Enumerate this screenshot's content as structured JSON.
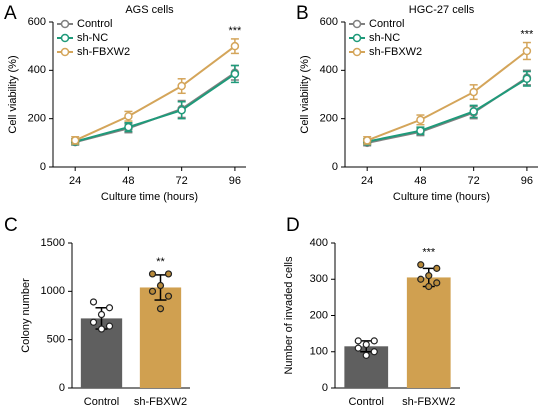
{
  "chart_data": [
    {
      "type": "line",
      "panel_label": "A",
      "title": "AGS cells",
      "xlabel": "Culture time (hours)",
      "ylabel": "Cell viability (%)",
      "x": [
        24,
        48,
        72,
        96
      ],
      "xlim": [
        14,
        101
      ],
      "xticks": [
        24,
        48,
        72,
        96
      ],
      "ylim": [
        0,
        600
      ],
      "yticks": [
        0,
        200,
        400,
        600
      ],
      "series": [
        {
          "name": "Control",
          "color": "#808080",
          "values": [
            103,
            160,
            240,
            390
          ],
          "errors": [
            12,
            18,
            35,
            30
          ]
        },
        {
          "name": "sh-NC",
          "color": "#1f9a7a",
          "values": [
            105,
            165,
            235,
            385
          ],
          "errors": [
            12,
            18,
            35,
            35
          ]
        },
        {
          "name": "sh-FBXW2",
          "color": "#d4a55a",
          "values": [
            110,
            210,
            335,
            500
          ],
          "errors": [
            15,
            20,
            30,
            30
          ]
        }
      ],
      "annotation": "***"
    },
    {
      "type": "line",
      "panel_label": "B",
      "title": "HGC-27 cells",
      "xlabel": "Culture time (hours)",
      "ylabel": "Cell viability (%)",
      "x": [
        24,
        48,
        72,
        96
      ],
      "xlim": [
        14,
        101
      ],
      "xticks": [
        24,
        48,
        72,
        96
      ],
      "ylim": [
        0,
        600
      ],
      "yticks": [
        0,
        200,
        400,
        600
      ],
      "series": [
        {
          "name": "Control",
          "color": "#808080",
          "values": [
            100,
            145,
            225,
            370
          ],
          "errors": [
            12,
            15,
            25,
            30
          ]
        },
        {
          "name": "sh-NC",
          "color": "#1f9a7a",
          "values": [
            105,
            150,
            230,
            365
          ],
          "errors": [
            12,
            15,
            25,
            30
          ]
        },
        {
          "name": "sh-FBXW2",
          "color": "#d4a55a",
          "values": [
            110,
            195,
            310,
            480
          ],
          "errors": [
            15,
            20,
            30,
            35
          ]
        }
      ],
      "annotation": "***"
    },
    {
      "type": "bar",
      "panel_label": "C",
      "ylabel": "Colony number",
      "categories": [
        "Control",
        "sh-FBXW2"
      ],
      "values": [
        720,
        1040
      ],
      "errors": [
        110,
        130
      ],
      "colors": [
        "#5f5f5f",
        "#d0a050"
      ],
      "point_colors": [
        "#ffffff",
        "#b88a3a"
      ],
      "points": [
        [
          890,
          830,
          760,
          680,
          640,
          610
        ],
        [
          1180,
          1180,
          1060,
          1000,
          950,
          820
        ]
      ],
      "ylim": [
        0,
        1500
      ],
      "yticks": [
        0,
        500,
        1000,
        1500
      ],
      "annotation": "**"
    },
    {
      "type": "bar",
      "panel_label": "D",
      "ylabel": "Number of invaded cells",
      "categories": [
        "Control",
        "sh-FBXW2"
      ],
      "values": [
        115,
        305
      ],
      "errors": [
        15,
        25
      ],
      "colors": [
        "#5f5f5f",
        "#d0a050"
      ],
      "point_colors": [
        "#ffffff",
        "#b88a3a"
      ],
      "points": [
        [
          130,
          130,
          120,
          110,
          100,
          90
        ],
        [
          340,
          330,
          310,
          300,
          290,
          280
        ]
      ],
      "ylim": [
        0,
        400
      ],
      "yticks": [
        0,
        100,
        200,
        300,
        400
      ],
      "annotation": "***"
    }
  ]
}
